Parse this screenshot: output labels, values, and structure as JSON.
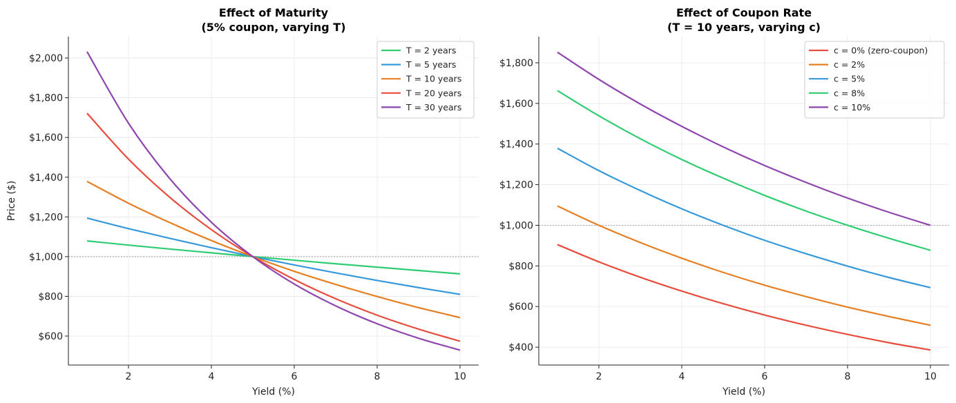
{
  "chart_data": [
    {
      "type": "line",
      "title": "Effect of Maturity",
      "subtitle": "(5% coupon, varying T)",
      "xlabel": "Yield (%)",
      "ylabel": "Price ($)",
      "xlim": [
        0.55,
        10.45
      ],
      "ylim": [
        454,
        2108
      ],
      "xticks": [
        2,
        4,
        6,
        8,
        10
      ],
      "xtick_labels": [
        "2",
        "4",
        "6",
        "8",
        "10"
      ],
      "yticks": [
        600,
        800,
        1000,
        1200,
        1400,
        1600,
        1800,
        2000
      ],
      "ytick_labels": [
        "$600",
        "$800",
        "$1,000",
        "$1,200",
        "$1,400",
        "$1,600",
        "$1,800",
        "$2,000"
      ],
      "grid": true,
      "reference_line": 1000,
      "legend_position": "top-right",
      "x": [
        1,
        2,
        3,
        4,
        5,
        6,
        7,
        8,
        9,
        10
      ],
      "series": [
        {
          "name": "T = 2 years",
          "color": "#2ecc71",
          "values": [
            1079,
            1058,
            1038,
            1019,
            1000,
            982,
            964,
            947,
            930,
            913
          ]
        },
        {
          "name": "T = 5 years",
          "color": "#3498db",
          "values": [
            1194,
            1141,
            1092,
            1045,
            1000,
            958,
            918,
            880,
            844,
            810
          ]
        },
        {
          "name": "T = 10 years",
          "color": "#e67e22",
          "values": [
            1379,
            1269,
            1171,
            1081,
            1000,
            926,
            860,
            799,
            743,
            693
          ]
        },
        {
          "name": "T = 20 years",
          "color": "#e74c3c",
          "values": [
            1722,
            1491,
            1298,
            1136,
            1000,
            885,
            788,
            705,
            635,
            574
          ]
        },
        {
          "name": "T = 30 years",
          "color": "#8e44ad",
          "values": [
            2032,
            1672,
            1392,
            1173,
            1000,
            862,
            752,
            662,
            589,
            529
          ]
        }
      ]
    },
    {
      "type": "line",
      "title": "Effect of Coupon Rate",
      "subtitle": "(T = 10 years, varying c)",
      "xlabel": "Yield (%)",
      "ylabel": "",
      "xlim": [
        0.55,
        10.45
      ],
      "ylim": [
        312,
        1929
      ],
      "xticks": [
        2,
        4,
        6,
        8,
        10
      ],
      "xtick_labels": [
        "2",
        "4",
        "6",
        "8",
        "10"
      ],
      "yticks": [
        400,
        600,
        800,
        1000,
        1200,
        1400,
        1600,
        1800
      ],
      "ytick_labels": [
        "$400",
        "$600",
        "$800",
        "$1,000",
        "$1,200",
        "$1,400",
        "$1,600",
        "$1,800"
      ],
      "grid": true,
      "reference_line": 1000,
      "legend_position": "top-right",
      "x": [
        1,
        2,
        3,
        4,
        5,
        6,
        7,
        8,
        9,
        10
      ],
      "series": [
        {
          "name": "c = 0% (zero-coupon)",
          "color": "#e74c3c",
          "values": [
            905,
            820,
            744,
            676,
            614,
            558,
            508,
            463,
            422,
            386
          ]
        },
        {
          "name": "c = 2%",
          "color": "#e67e22",
          "values": [
            1095,
            1000,
            915,
            838,
            768,
            705,
            649,
            597,
            551,
            508
          ]
        },
        {
          "name": "c = 5%",
          "color": "#3498db",
          "values": [
            1379,
            1269,
            1171,
            1081,
            1000,
            926,
            860,
            799,
            743,
            693
          ]
        },
        {
          "name": "c = 8%",
          "color": "#2ecc71",
          "values": [
            1663,
            1539,
            1426,
            1324,
            1232,
            1147,
            1070,
            1000,
            936,
            877
          ]
        },
        {
          "name": "c = 10%",
          "color": "#8e44ad",
          "values": [
            1852,
            1718,
            1597,
            1487,
            1386,
            1294,
            1211,
            1134,
            1064,
            1000
          ]
        }
      ]
    }
  ]
}
